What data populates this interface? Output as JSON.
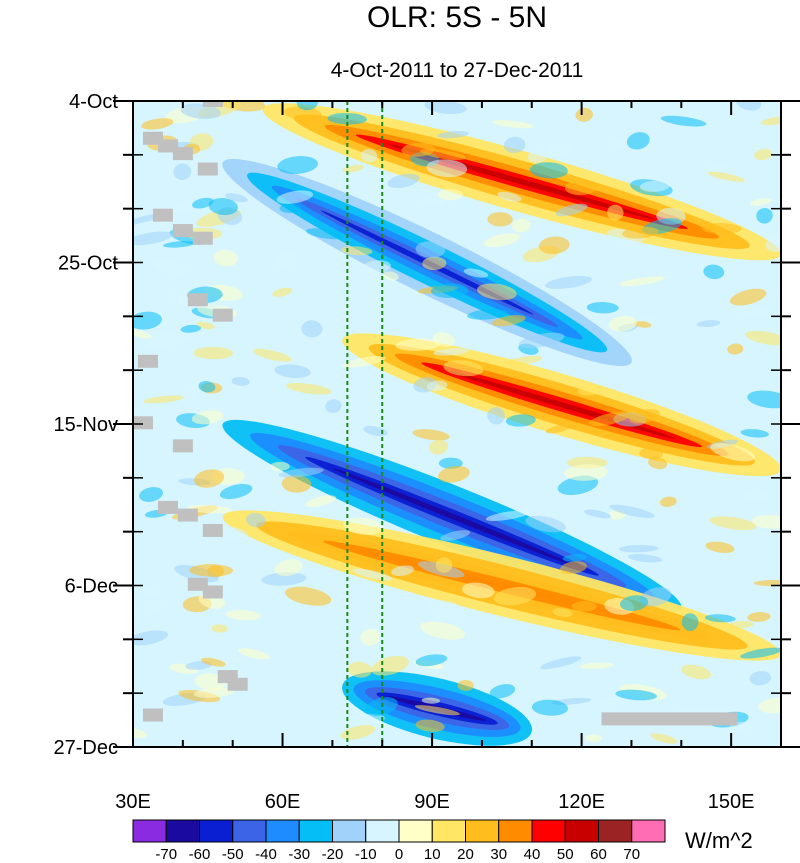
{
  "chart_data": {
    "type": "heatmap",
    "title": "OLR: 5S - 5N",
    "subtitle": "4-Oct-2011 to 27-Dec-2011",
    "x_range": [
      30,
      160
    ],
    "y_range_days": [
      0,
      84
    ],
    "x_ticks": [
      {
        "value": 30,
        "label": "30E"
      },
      {
        "value": 60,
        "label": "60E"
      },
      {
        "value": 90,
        "label": "90E"
      },
      {
        "value": 120,
        "label": "120E"
      },
      {
        "value": 150,
        "label": "150E"
      }
    ],
    "y_ticks": [
      {
        "day": 0,
        "label": "4-Oct"
      },
      {
        "day": 21,
        "label": "25-Oct"
      },
      {
        "day": 42,
        "label": "15-Nov"
      },
      {
        "day": 63,
        "label": "6-Dec"
      },
      {
        "day": 84,
        "label": "27-Dec"
      }
    ],
    "reference_lines_lon": [
      73,
      80
    ],
    "colorbar": {
      "labels": [
        "-70",
        "-60",
        "-50",
        "-40",
        "-30",
        "-20",
        "-10",
        "0",
        "10",
        "20",
        "30",
        "40",
        "50",
        "60",
        "70"
      ],
      "colors": [
        "#8a2be2",
        "#1b0aa0",
        "#0a1ed2",
        "#3c64e6",
        "#1e8cff",
        "#05bef5",
        "#a0d2fa",
        "#d7f5ff",
        "#ffffc8",
        "#ffe664",
        "#ffbe1e",
        "#ff8c00",
        "#ff0000",
        "#c80000",
        "#9b2323",
        "#ff6eb4"
      ],
      "units": "W/m^2"
    },
    "features": [
      {
        "kind": "positive",
        "lon_start": 56,
        "day_start": 1,
        "lon_end": 160,
        "day_end": 20,
        "value": 45
      },
      {
        "kind": "negative",
        "lon_start": 48,
        "day_start": 8,
        "lon_end": 130,
        "day_end": 34,
        "value": -45
      },
      {
        "kind": "positive",
        "lon_start": 72,
        "day_start": 31,
        "lon_end": 160,
        "day_end": 48,
        "value": 40
      },
      {
        "kind": "negative",
        "lon_start": 48,
        "day_start": 42,
        "lon_end": 140,
        "day_end": 66,
        "value": -60
      },
      {
        "kind": "positive",
        "lon_start": 48,
        "day_start": 54,
        "lon_end": 160,
        "day_end": 72,
        "value": 25
      },
      {
        "kind": "negative",
        "lon_start": 72,
        "day_start": 76,
        "lon_end": 110,
        "day_end": 82,
        "value": -55
      }
    ]
  }
}
